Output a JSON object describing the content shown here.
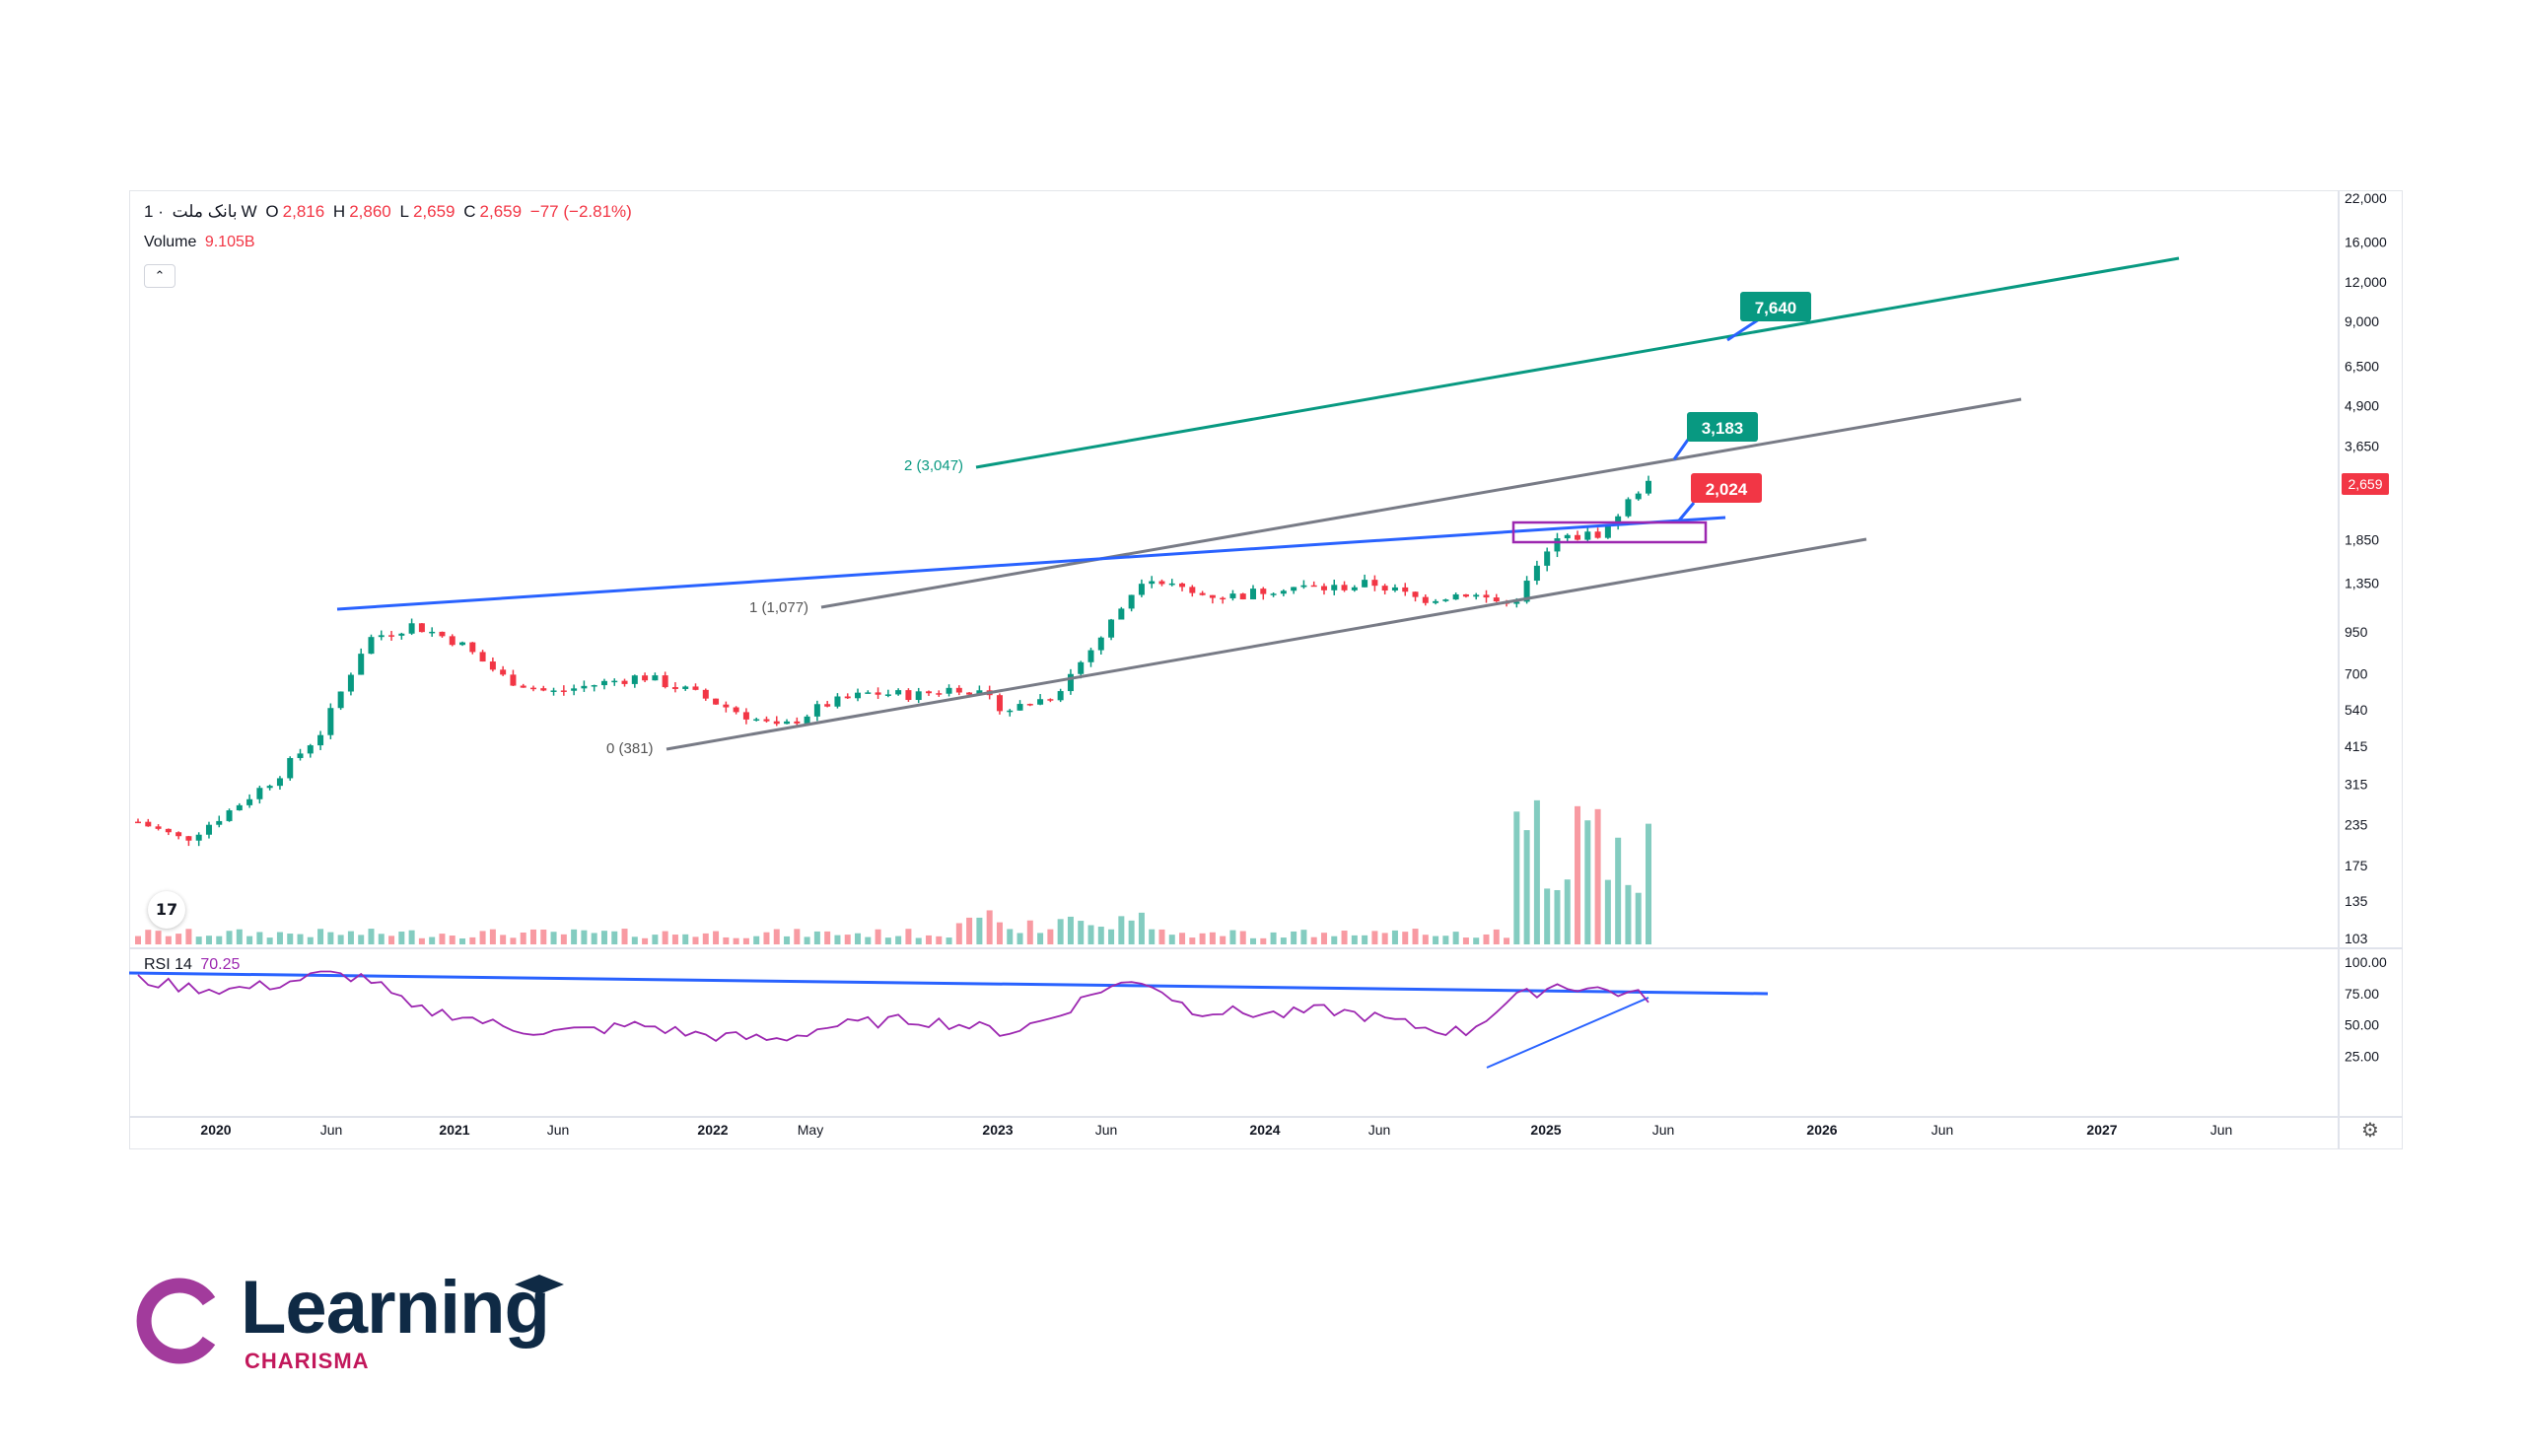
{
  "header": {
    "symbol": "بانک ملت",
    "separator": "·",
    "interval": "1W",
    "open_label": "O",
    "open": "2,816",
    "high_label": "H",
    "high": "2,860",
    "low_label": "L",
    "low": "2,659",
    "close_label": "C",
    "close": "2,659",
    "change": "−77 (−2.81%)",
    "volume_label": "Volume",
    "volume": "9.105B",
    "rsi_label": "RSI 14",
    "rsi_value": "70.25",
    "collapse_icon": "chevron-up-icon"
  },
  "chart_data": {
    "type": "line",
    "price_scale": "log",
    "price_ticks": [
      "22,000",
      "16,000",
      "12,000",
      "9,000",
      "6,500",
      "4,900",
      "3,650",
      "1,850",
      "1,350",
      "950",
      "700",
      "540",
      "415",
      "315",
      "235",
      "175",
      "135",
      "103"
    ],
    "rsi_ticks": [
      "100.00",
      "75.00",
      "50.00",
      "25.00"
    ],
    "x_ticks": [
      "2020",
      "Jun",
      "2021",
      "Jun",
      "2022",
      "May",
      "2023",
      "Jun",
      "2024",
      "Jun",
      "2025",
      "Jun",
      "2026",
      "Jun",
      "2027",
      "Jun"
    ],
    "last_price_label": "2,659",
    "fib_levels": [
      {
        "label": "0 (381)"
      },
      {
        "label": "1 (1,077)"
      },
      {
        "label": "2 (3,047)"
      }
    ],
    "targets": [
      {
        "label": "7,640",
        "color": "#089981"
      },
      {
        "label": "3,183",
        "color": "#089981"
      },
      {
        "label": "2,024",
        "color": "#f23645"
      }
    ],
    "colors": {
      "up": "#089981",
      "down": "#f23645",
      "rsi": "#9c27b0",
      "trend_blue": "#2962ff",
      "channel_gray": "#787b86",
      "target_line": "#089981"
    },
    "price_series": {
      "x": [
        "2019-10",
        "2019-12",
        "2020-02",
        "2020-04",
        "2020-06",
        "2020-08",
        "2020-10",
        "2020-12",
        "2021-02",
        "2021-04",
        "2021-06",
        "2021-08",
        "2021-10",
        "2021-12",
        "2022-02",
        "2022-04",
        "2022-06",
        "2022-08",
        "2022-10",
        "2022-12",
        "2023-02",
        "2023-04",
        "2023-06",
        "2023-08",
        "2023-10",
        "2023-12",
        "2024-02",
        "2024-04",
        "2024-06",
        "2024-08",
        "2024-10",
        "2024-12",
        "2025-02",
        "2025-04"
      ],
      "close": [
        240,
        210,
        260,
        330,
        460,
        900,
        1000,
        880,
        680,
        610,
        650,
        690,
        620,
        540,
        470,
        560,
        610,
        600,
        640,
        540,
        600,
        900,
        1450,
        1250,
        1230,
        1320,
        1300,
        1350,
        1200,
        1260,
        1150,
        1850,
        1950,
        2900
      ]
    },
    "rsi_series": [
      86,
      80,
      78,
      82,
      90,
      88,
      62,
      58,
      48,
      44,
      46,
      50,
      43,
      40,
      38,
      48,
      52,
      54,
      50,
      44,
      56,
      78,
      86,
      62,
      60,
      58,
      62,
      56,
      48,
      44,
      70,
      82,
      78,
      72
    ]
  },
  "branding": {
    "word": "Learning",
    "sub": "CHARISMA"
  }
}
